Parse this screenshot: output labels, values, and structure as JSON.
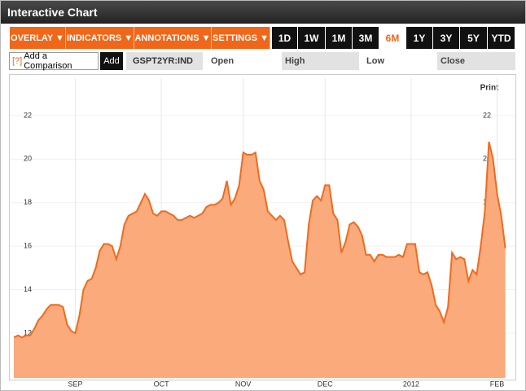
{
  "header": {
    "title": "Interactive Chart"
  },
  "toolbar": {
    "menus": [
      "OVERLAY ▼",
      "INDICATORS ▼",
      "ANNOTATIONS ▼",
      "SETTINGS ▼"
    ],
    "ranges": [
      "1D",
      "1W",
      "1M",
      "3M",
      "6M",
      "1Y",
      "3Y",
      "5Y",
      "YTD"
    ],
    "active_range": "6M"
  },
  "comparison": {
    "help": "[?]",
    "placeholder": "Add a Comparison",
    "button": "Add"
  },
  "quote": {
    "symbol": "GSPT2YR:IND",
    "fields": [
      "Open",
      "High",
      "Low",
      "Close"
    ]
  },
  "print": "Print",
  "chart_data": {
    "type": "area",
    "color": "#f06a1e",
    "fill": "#fbaa7c",
    "grid": true,
    "categories": [
      null,
      null,
      null,
      null,
      null,
      null,
      null,
      null,
      null,
      null,
      null,
      null,
      null,
      null,
      null,
      "SEP",
      null,
      null,
      null,
      null,
      null,
      null,
      null,
      null,
      null,
      null,
      null,
      null,
      null,
      null,
      null,
      null,
      null,
      null,
      null,
      null,
      "OCT",
      null,
      null,
      null,
      null,
      null,
      null,
      null,
      null,
      null,
      null,
      null,
      null,
      null,
      null,
      null,
      null,
      null,
      null,
      null,
      "NOV",
      null,
      null,
      null,
      null,
      null,
      null,
      null,
      null,
      null,
      null,
      null,
      null,
      null,
      null,
      null,
      null,
      null,
      null,
      null,
      "DEC",
      null,
      null,
      null,
      null,
      null,
      null,
      null,
      null,
      null,
      null,
      null,
      null,
      null,
      null,
      null,
      null,
      null,
      null,
      null,
      null,
      "2012",
      null,
      null,
      null,
      null,
      null,
      null,
      null,
      null,
      null,
      null,
      null,
      null,
      null,
      null,
      null,
      null,
      null,
      null,
      null,
      null,
      "FEB",
      null,
      null
    ],
    "values": [
      11.8,
      11.9,
      11.8,
      11.9,
      11.9,
      12.2,
      12.6,
      12.8,
      13.1,
      13.3,
      13.3,
      13.3,
      13.2,
      12.4,
      12.1,
      12.0,
      12.8,
      14.0,
      14.4,
      14.5,
      15.0,
      15.8,
      16.1,
      16.1,
      16.0,
      15.4,
      16.0,
      17.0,
      17.4,
      17.5,
      17.6,
      18.0,
      18.4,
      18.1,
      17.5,
      17.4,
      17.6,
      17.6,
      17.5,
      17.4,
      17.2,
      17.2,
      17.3,
      17.4,
      17.3,
      17.4,
      17.5,
      17.8,
      17.9,
      17.9,
      18.0,
      18.2,
      19.0,
      17.9,
      18.2,
      18.8,
      20.3,
      20.2,
      20.2,
      20.3,
      19.0,
      18.6,
      17.6,
      17.4,
      17.2,
      17.4,
      17.2,
      16.2,
      15.3,
      15.0,
      14.7,
      14.8,
      17.0,
      18.1,
      18.3,
      18.1,
      18.8,
      18.8,
      17.5,
      17.2,
      15.7,
      16.2,
      17.0,
      17.1,
      16.9,
      16.5,
      15.6,
      15.6,
      15.3,
      15.6,
      15.6,
      15.5,
      15.5,
      15.5,
      15.6,
      15.5,
      16.1,
      16.1,
      16.1,
      14.8,
      14.7,
      14.8,
      14.2,
      13.3,
      13.0,
      12.5,
      13.2,
      15.7,
      15.4,
      15.5,
      15.4,
      14.4,
      14.9,
      14.7,
      16.0,
      17.6,
      20.8,
      20.0,
      18.4,
      17.4,
      15.9
    ],
    "ylim": [
      9.94,
      23.72
    ],
    "yticks": [
      12,
      14,
      16,
      18,
      20,
      22
    ]
  }
}
